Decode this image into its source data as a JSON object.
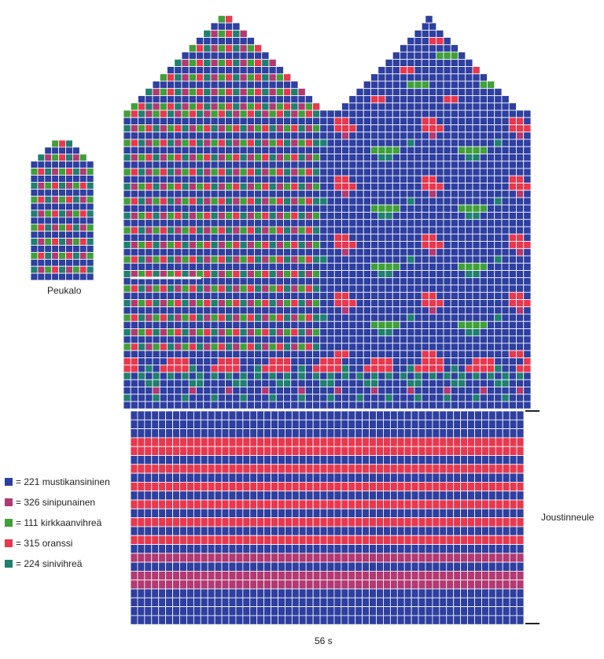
{
  "labels": {
    "thumb": "Peukalo",
    "ribbing": "Joustinneule",
    "width": "56 s"
  },
  "legend": [
    {
      "key": "a",
      "text": "= 221 mustikansininen",
      "color": "#2e3fa0"
    },
    {
      "key": "b",
      "text": "= 326 sinipunainen",
      "color": "#b23a72"
    },
    {
      "key": "c",
      "text": "= 111 kirkkaanvihreä",
      "color": "#3fa03a"
    },
    {
      "key": "d",
      "text": "= 315 oranssi",
      "color": "#e8384f"
    },
    {
      "key": "e",
      "text": "= 224 sinivihreä",
      "color": "#1f8070"
    }
  ],
  "chart": {
    "stitches": 56,
    "ribbing_stripes": [
      "a",
      "a",
      "a",
      "d",
      "d",
      "a",
      "d",
      "a",
      "d",
      "a",
      "d",
      "a",
      "d",
      "a",
      "d",
      "a",
      "b",
      "a",
      "b",
      "b",
      "a",
      "a",
      "a",
      "a"
    ]
  }
}
